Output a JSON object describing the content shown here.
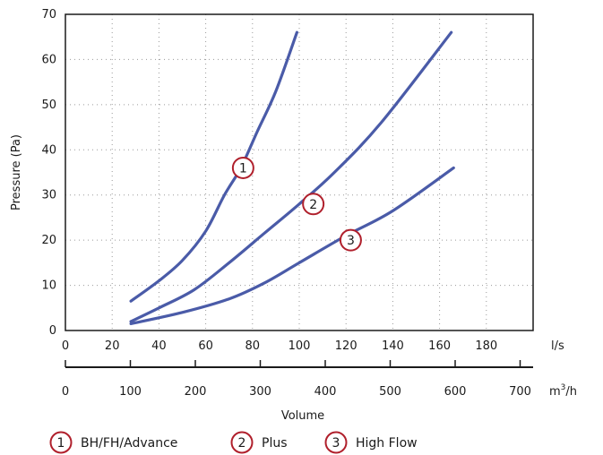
{
  "chart_data": {
    "type": "line",
    "title": "",
    "ylabel": "Pressure (Pa)",
    "xlabel": "Volume",
    "ylim": [
      0,
      70
    ],
    "yticks": [
      0,
      10,
      20,
      30,
      40,
      50,
      60,
      70
    ],
    "xlim_ls": [
      0,
      200
    ],
    "xticks_ls": [
      0,
      20,
      40,
      60,
      80,
      100,
      120,
      140,
      160,
      180
    ],
    "x_unit_ls": "l/s",
    "xticks_m3h": [
      0,
      100,
      200,
      300,
      400,
      500,
      600,
      700
    ],
    "x_unit_m3h_base": "m",
    "x_unit_m3h_sup": "3",
    "x_unit_m3h_tail": "/h",
    "grid": true,
    "legend_position": "bottom",
    "series": [
      {
        "name": "BH/FH/Advance",
        "marker": "1",
        "color": "#4a5ba8",
        "points": [
          [
            28,
            6.5
          ],
          [
            40,
            11
          ],
          [
            50,
            15.5
          ],
          [
            60,
            22
          ],
          [
            68,
            30
          ],
          [
            75,
            36
          ],
          [
            82,
            44
          ],
          [
            90,
            53
          ],
          [
            99,
            66
          ]
        ]
      },
      {
        "name": "Plus",
        "marker": "2",
        "color": "#4a5ba8",
        "points": [
          [
            28,
            2
          ],
          [
            40,
            5
          ],
          [
            55,
            9
          ],
          [
            70,
            15
          ],
          [
            85,
            21.5
          ],
          [
            100,
            28
          ],
          [
            115,
            35
          ],
          [
            135,
            46
          ],
          [
            165,
            66
          ]
        ]
      },
      {
        "name": "High Flow",
        "marker": "3",
        "color": "#4a5ba8",
        "points": [
          [
            28,
            1.5
          ],
          [
            50,
            4
          ],
          [
            70,
            7
          ],
          [
            85,
            10.5
          ],
          [
            100,
            15
          ],
          [
            120,
            21
          ],
          [
            140,
            26.5
          ],
          [
            166,
            36
          ]
        ]
      }
    ],
    "markers": [
      {
        "label": "1",
        "x": 76,
        "y": 36
      },
      {
        "label": "2",
        "x": 106,
        "y": 28
      },
      {
        "label": "3",
        "x": 122,
        "y": 20
      }
    ]
  }
}
